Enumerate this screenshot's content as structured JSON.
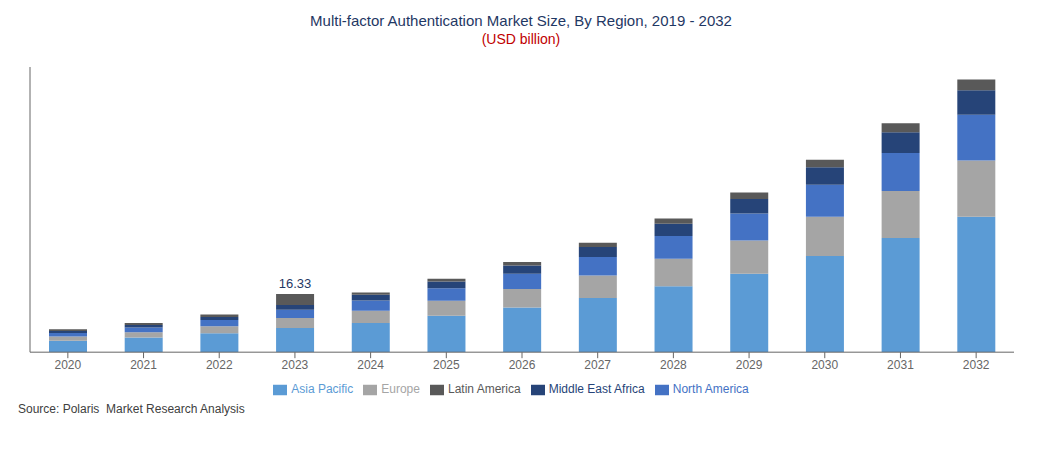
{
  "chart_data": {
    "type": "bar",
    "stacked": true,
    "title": "Multi-factor Authentication Market Size, By Region, 2019 - 2032",
    "subtitle": "(USD billion)",
    "source": "Source: Polaris  Market Research Analysis",
    "categories": [
      "2020",
      "2021",
      "2022",
      "2023",
      "2024",
      "2025",
      "2026",
      "2027",
      "2028",
      "2029",
      "2030",
      "2031",
      "2032"
    ],
    "series": [
      {
        "name": "Asia Pacific",
        "color": "#5B9BD5",
        "values": [
          3.2,
          4.1,
          5.3,
          6.8,
          8.2,
          10.2,
          12.5,
          15.2,
          18.5,
          22.0,
          27.0,
          32.0,
          38.0
        ]
      },
      {
        "name": "Europe",
        "color": "#A5A5A5",
        "values": [
          1.2,
          1.5,
          2.0,
          2.8,
          3.4,
          4.2,
          5.2,
          6.3,
          7.7,
          9.3,
          11.0,
          13.2,
          15.8
        ]
      },
      {
        "name": "North America",
        "color": "#4472C4",
        "values": [
          1.0,
          1.3,
          1.7,
          2.3,
          2.9,
          3.5,
          4.3,
          5.2,
          6.4,
          7.6,
          9.0,
          10.7,
          12.8
        ]
      },
      {
        "name": "Middle East Africa",
        "color": "#264478",
        "values": [
          0.55,
          0.7,
          0.9,
          1.3,
          1.6,
          1.9,
          2.3,
          2.8,
          3.4,
          4.1,
          4.9,
          5.8,
          6.9
        ]
      },
      {
        "name": "Latin America",
        "color": "#595959",
        "values": [
          0.45,
          0.55,
          0.65,
          3.13,
          0.65,
          0.8,
          1.0,
          1.2,
          1.5,
          1.8,
          2.1,
          2.5,
          3.0
        ]
      }
    ],
    "annotations": [
      {
        "text": "16.33",
        "x": "2023"
      }
    ],
    "ylim": [
      0,
      80
    ],
    "grid": false,
    "legend": "bottom",
    "tick_labels": "x"
  }
}
